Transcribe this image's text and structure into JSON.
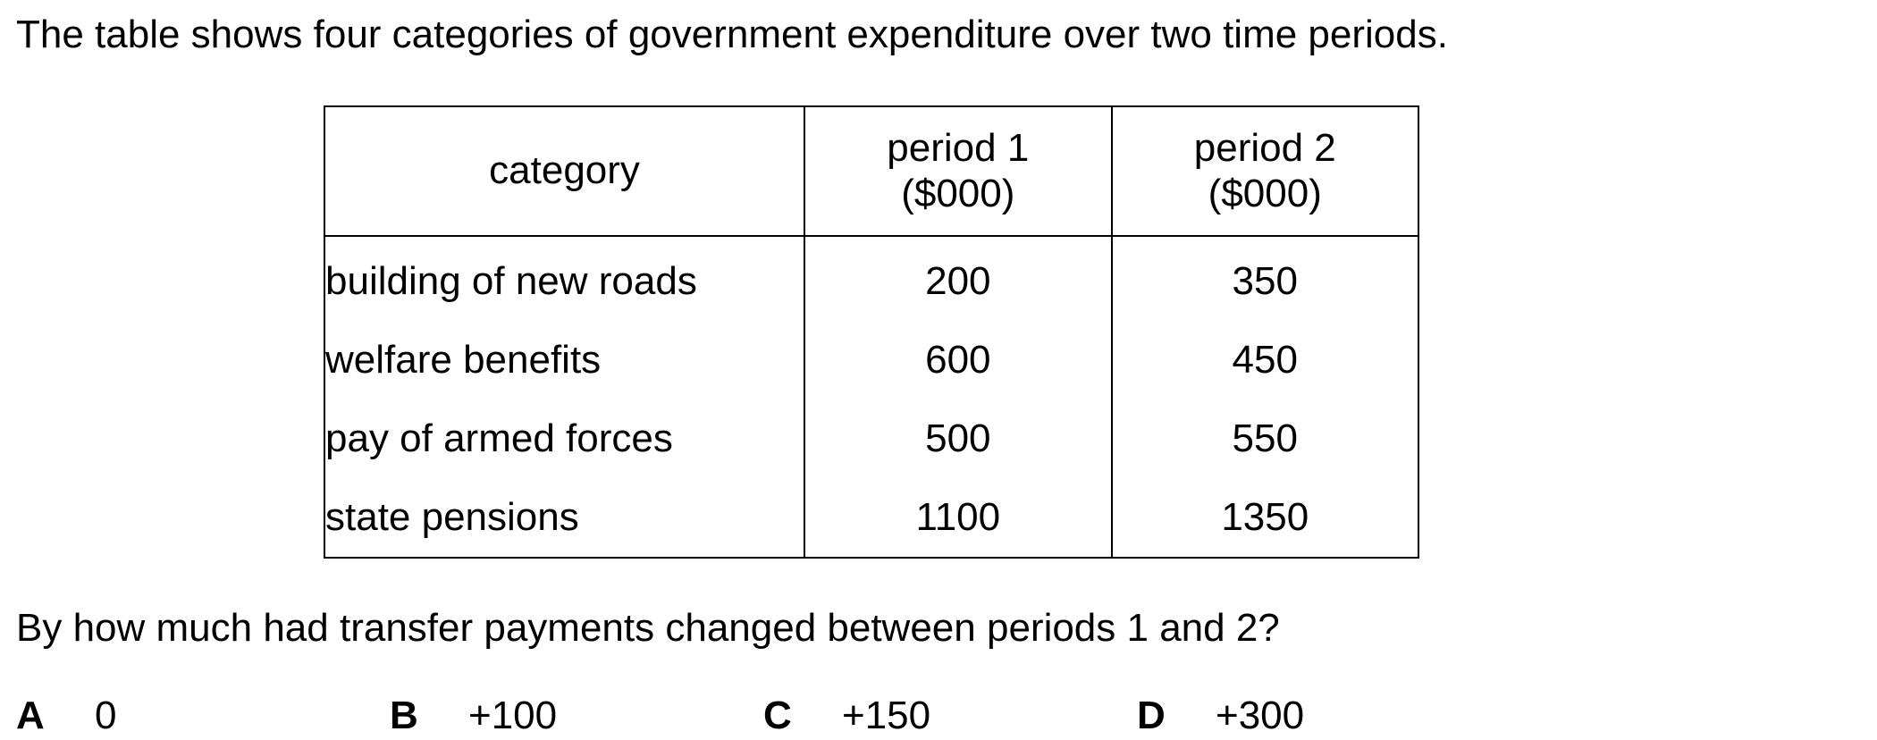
{
  "intro": "The table shows four categories of government expenditure over two time periods.",
  "table": {
    "headers": {
      "category": "category",
      "period1_line1": "period 1",
      "period1_line2": "($000)",
      "period2_line1": "period 2",
      "period2_line2": "($000)"
    },
    "rows": [
      {
        "category": "building of new roads",
        "period1": "200",
        "period2": "350"
      },
      {
        "category": "welfare benefits",
        "period1": "600",
        "period2": "450"
      },
      {
        "category": "pay of armed forces",
        "period1": "500",
        "period2": "550"
      },
      {
        "category": "state pensions",
        "period1": "1100",
        "period2": "1350"
      }
    ]
  },
  "question": "By how much had transfer payments changed between periods 1 and 2?",
  "options": [
    {
      "letter": "A",
      "text": "0"
    },
    {
      "letter": "B",
      "text": "+100"
    },
    {
      "letter": "C",
      "text": "+150"
    },
    {
      "letter": "D",
      "text": "+300"
    }
  ]
}
